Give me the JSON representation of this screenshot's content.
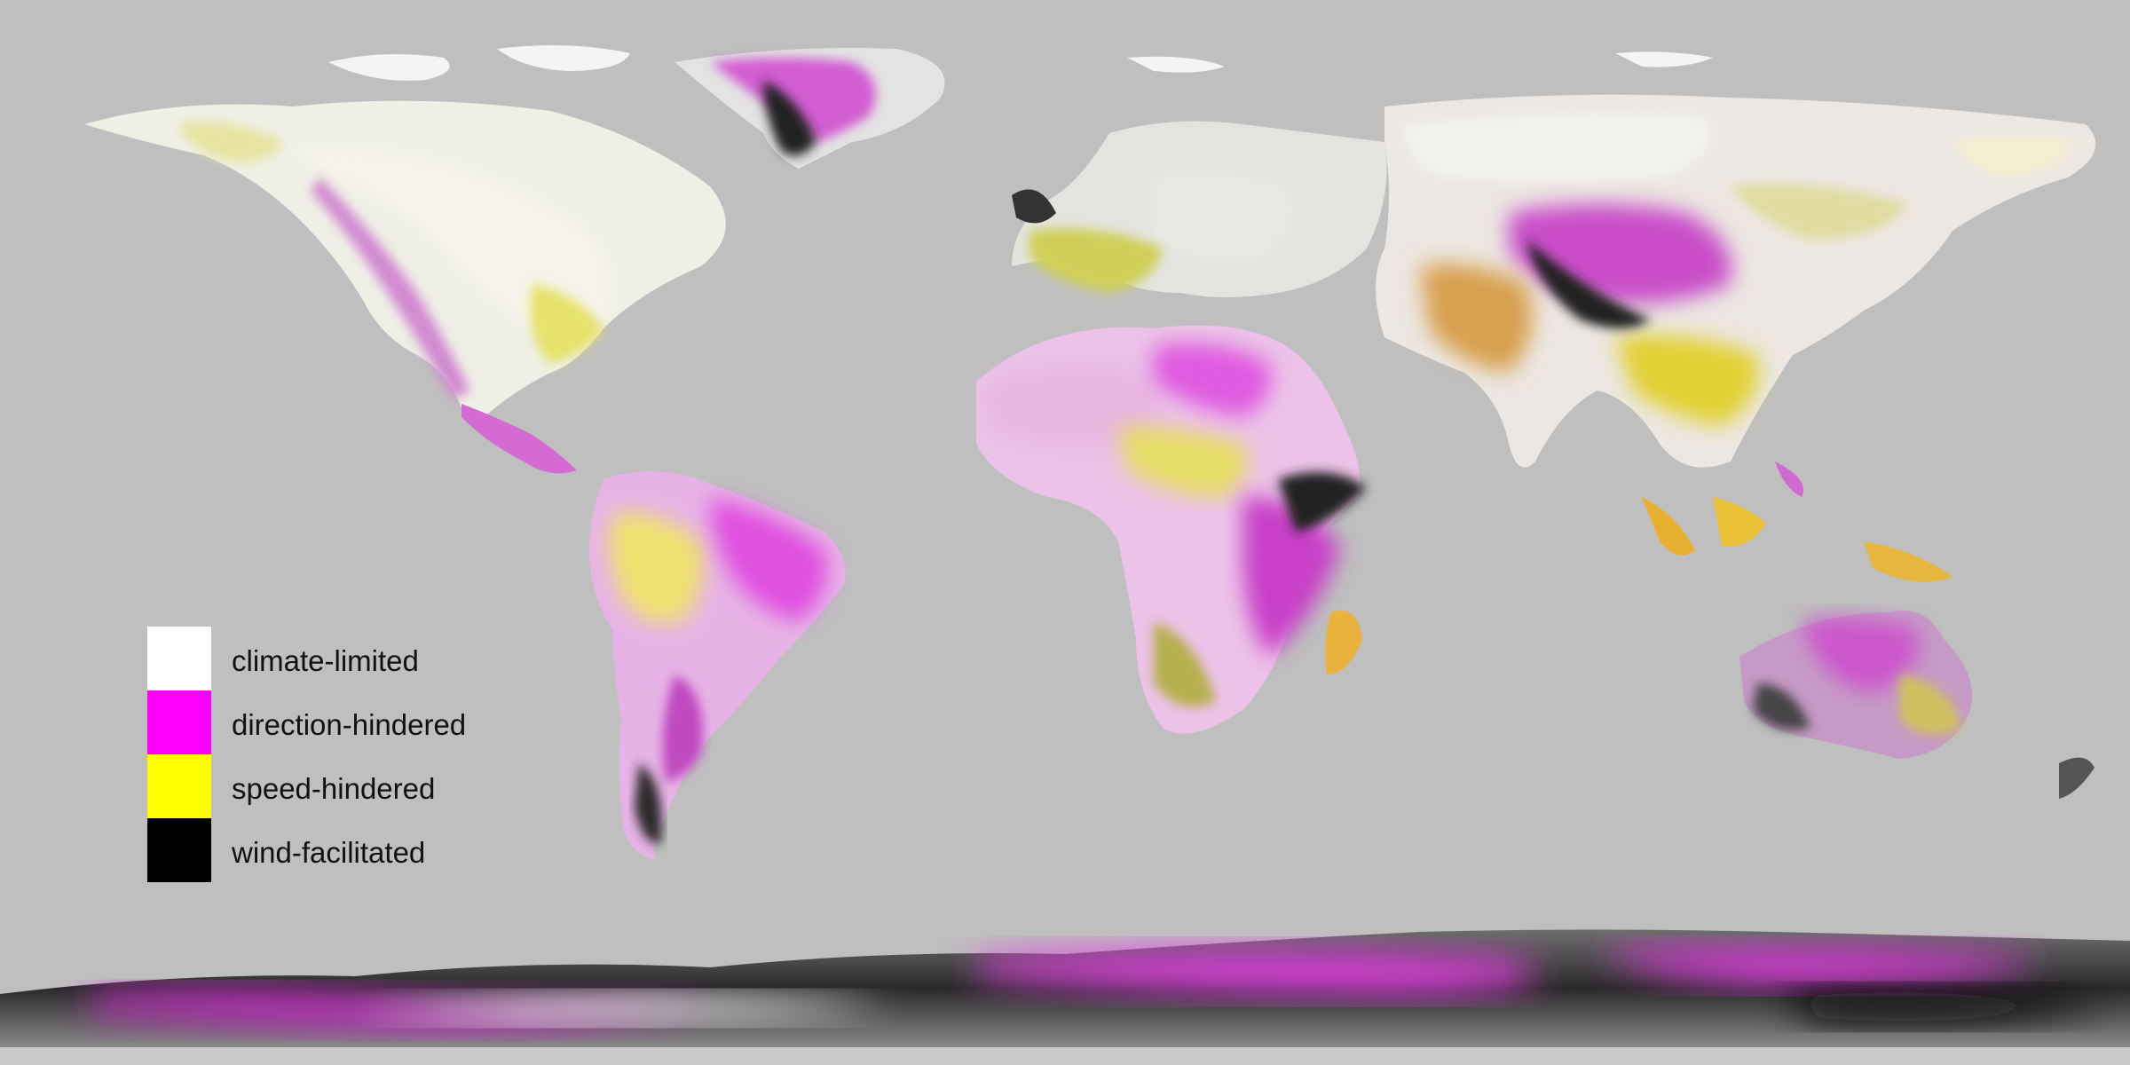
{
  "map": {
    "projection": "equirectangular",
    "background_color": "#bfbfbf",
    "antarctica_band": true
  },
  "legend": {
    "items": [
      {
        "label": "climate-limited",
        "color": "#ffffff"
      },
      {
        "label": "direction-hindered",
        "color": "#ff00ff"
      },
      {
        "label": "speed-hindered",
        "color": "#ffff00"
      },
      {
        "label": "wind-facilitated",
        "color": "#000000"
      }
    ]
  }
}
